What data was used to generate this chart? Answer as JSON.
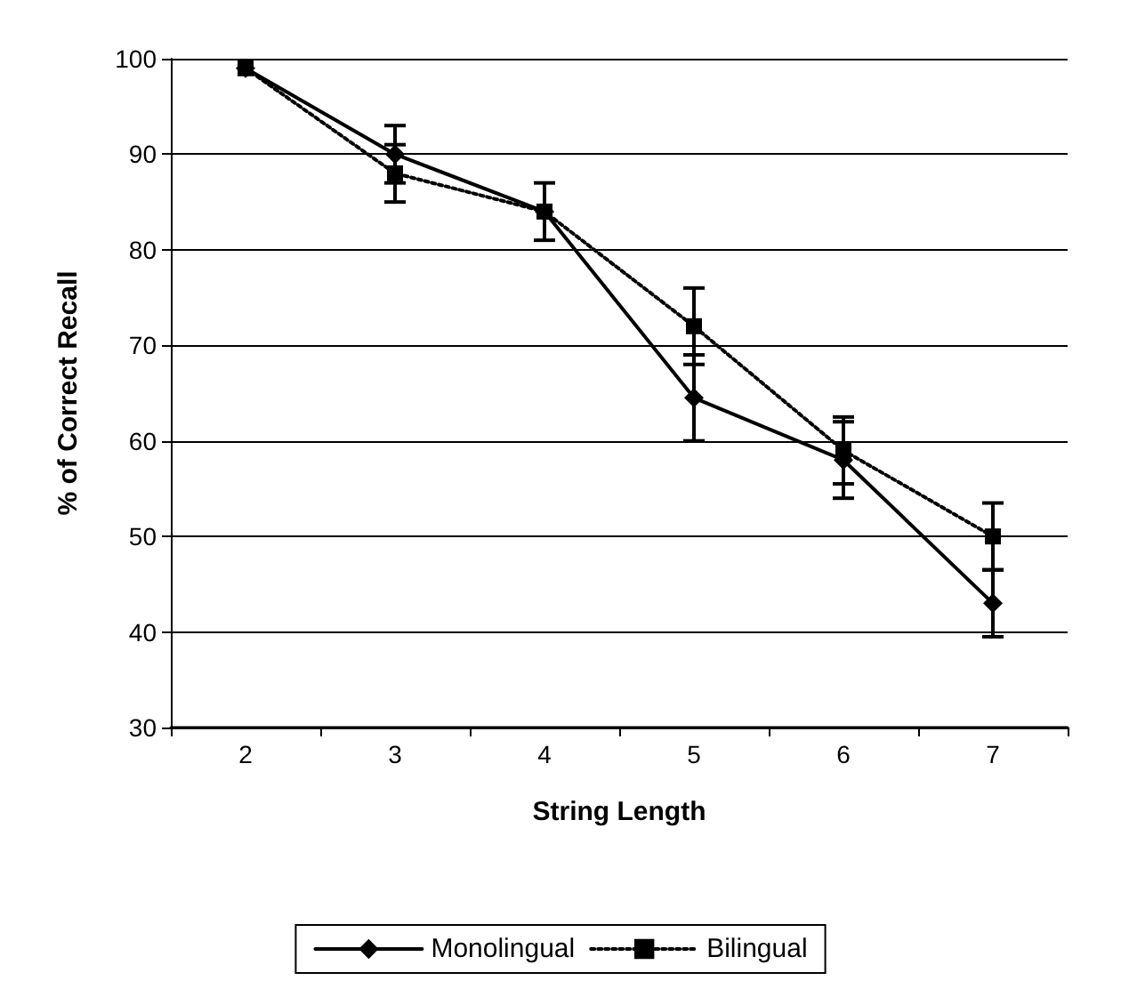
{
  "chart_data": {
    "type": "line",
    "xlabel": "String Length",
    "ylabel": "% of Correct Recall",
    "categories": [
      "2",
      "3",
      "4",
      "5",
      "6",
      "7"
    ],
    "series": [
      {
        "name": "Monolingual",
        "color": "#000000",
        "marker": "diamond",
        "line_style": "solid",
        "values": [
          99,
          90,
          84,
          64.5,
          58,
          43
        ],
        "errors": [
          null,
          3,
          3,
          4.5,
          4,
          3.5
        ]
      },
      {
        "name": "Bilingual",
        "color": "#000000",
        "marker": "square",
        "line_style": "dotted",
        "values": [
          99,
          88,
          84,
          72,
          59,
          50
        ],
        "errors": [
          null,
          3,
          null,
          4,
          3.5,
          3.5
        ]
      }
    ],
    "ylim": [
      30,
      100
    ],
    "yticks": [
      30,
      40,
      50,
      60,
      70,
      80,
      90,
      100
    ],
    "grid": "y",
    "legend": "bottom"
  }
}
